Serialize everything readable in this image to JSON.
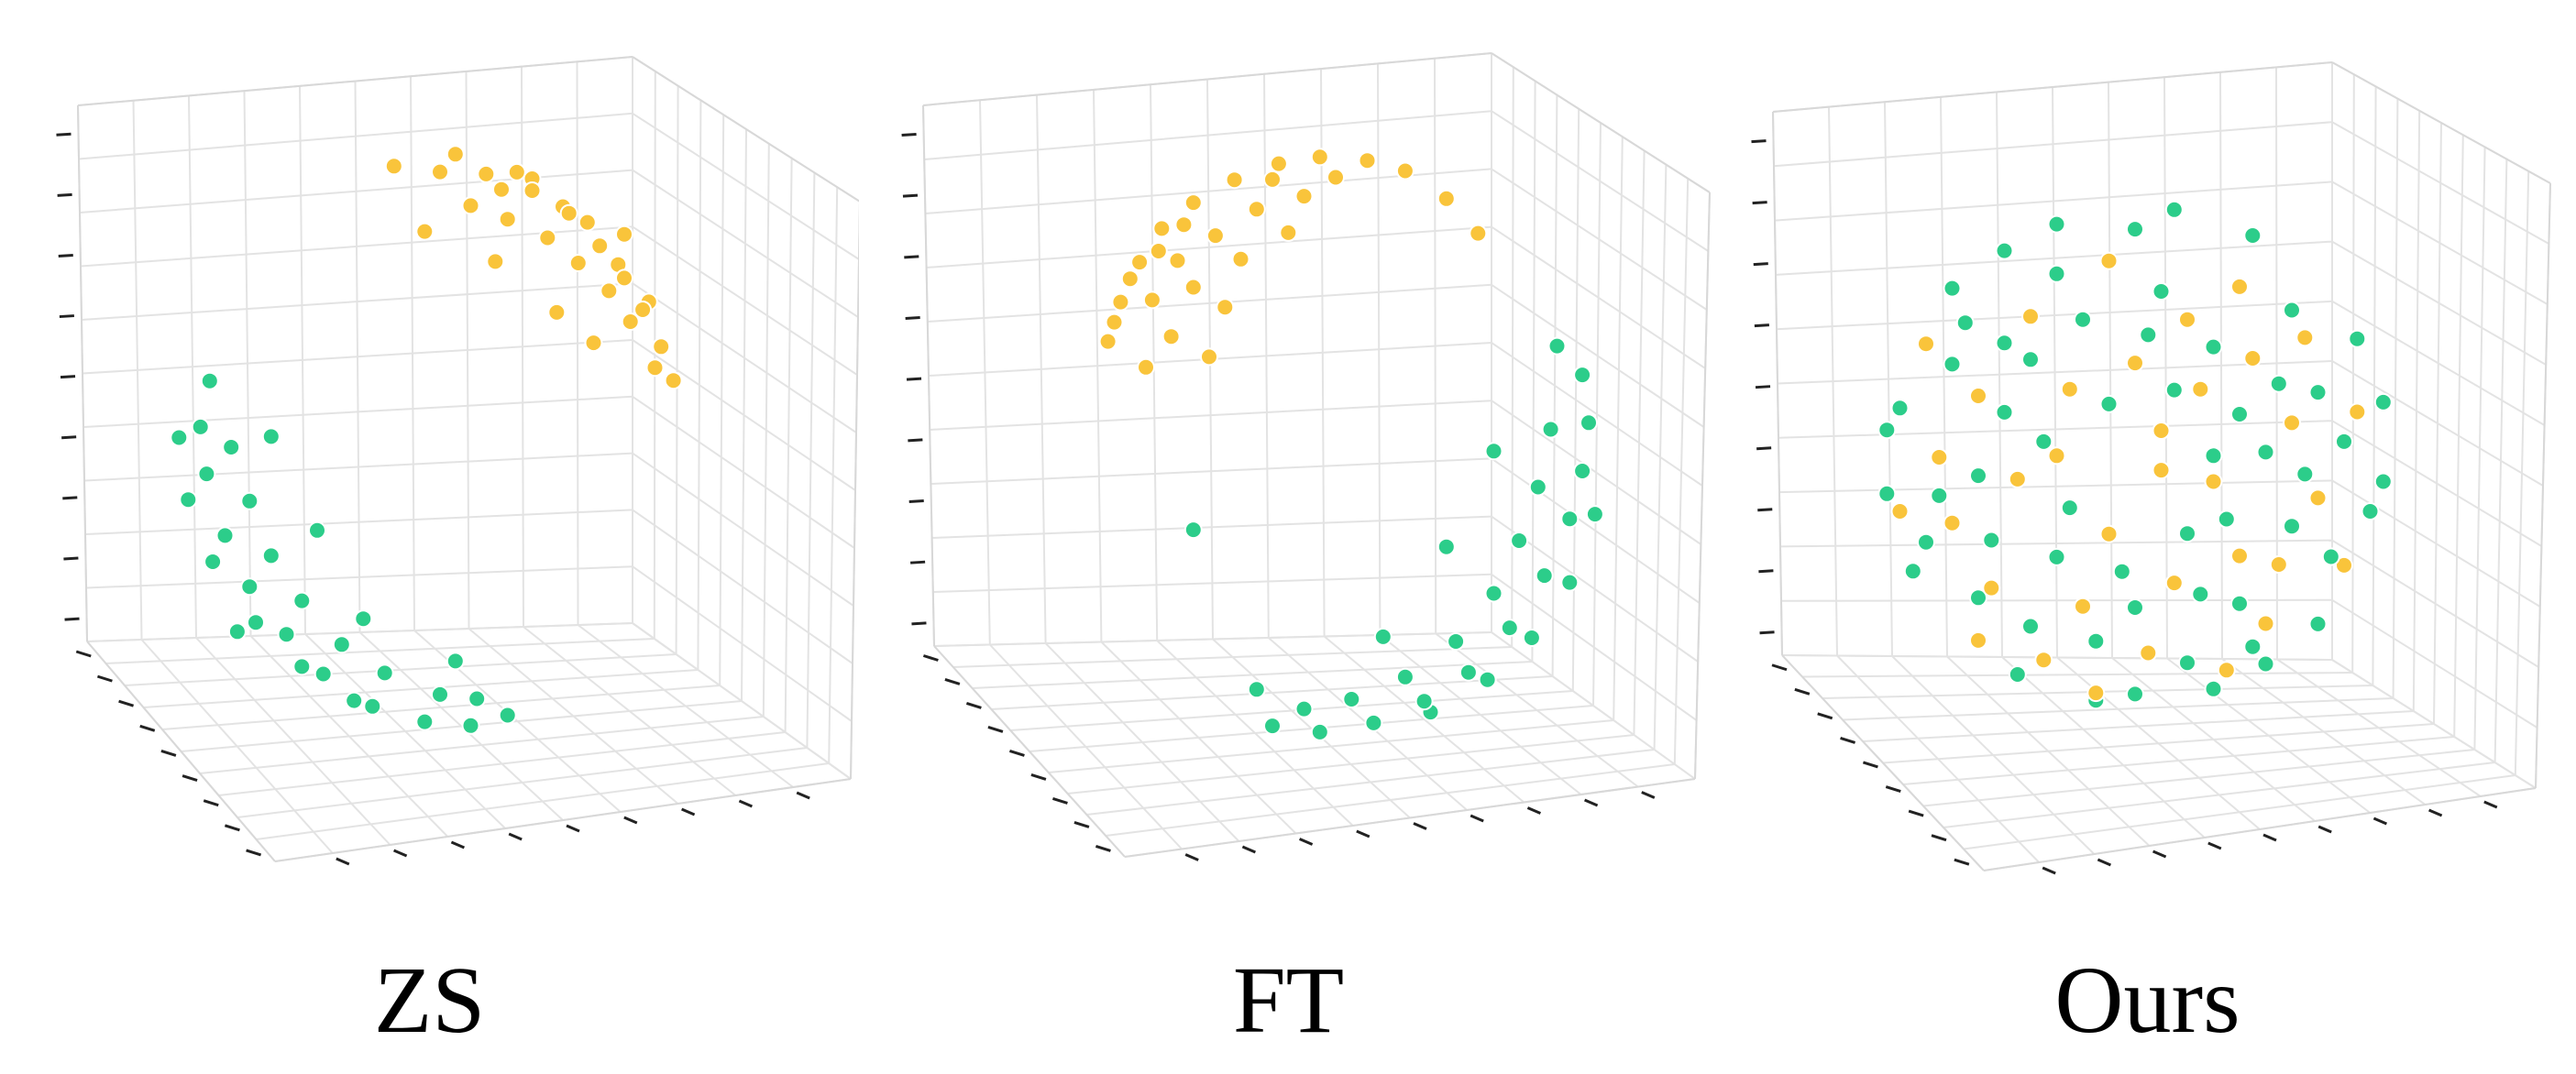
{
  "colors": {
    "class_a": "#f9c43b",
    "class_b": "#2ccd8a",
    "grid": "#e3e3e3",
    "tick": "#222222"
  },
  "chart_data": [
    {
      "type": "scatter",
      "title": "ZS",
      "projection": "3d",
      "grid": true,
      "series": [
        {
          "color": "#f9c43b",
          "points": [
            [
              -0.15,
              0.92,
              0.36
            ],
            [
              0.0,
              0.91,
              0.42
            ],
            [
              0.15,
              0.9,
              0.4
            ],
            [
              0.3,
              0.85,
              0.43
            ],
            [
              0.42,
              0.78,
              0.46
            ],
            [
              0.52,
              0.68,
              0.51
            ],
            [
              0.6,
              0.58,
              0.55
            ],
            [
              0.66,
              0.48,
              0.58
            ],
            [
              0.72,
              0.36,
              0.59
            ],
            [
              0.76,
              0.25,
              0.6
            ],
            [
              0.1,
              0.82,
              0.56
            ],
            [
              0.22,
              0.78,
              0.59
            ],
            [
              0.35,
              0.72,
              0.6
            ],
            [
              0.45,
              0.64,
              0.62
            ],
            [
              0.55,
              0.55,
              0.63
            ],
            [
              0.62,
              0.45,
              0.64
            ],
            [
              0.05,
              0.95,
              0.3
            ],
            [
              0.25,
              0.9,
              0.36
            ],
            [
              -0.05,
              0.75,
              0.66
            ],
            [
              0.18,
              0.66,
              0.72
            ],
            [
              0.38,
              0.5,
              0.77
            ],
            [
              0.5,
              0.4,
              0.77
            ],
            [
              0.3,
              0.88,
              0.37
            ],
            [
              0.48,
              0.75,
              0.46
            ],
            [
              0.58,
              0.62,
              0.52
            ],
            [
              0.68,
              0.5,
              0.54
            ],
            [
              0.7,
              0.3,
              0.65
            ],
            [
              0.4,
              0.8,
              0.45
            ],
            [
              0.2,
              0.86,
              0.47
            ],
            [
              0.6,
              0.7,
              0.39
            ]
          ]
        },
        {
          "color": "#2ccd8a",
          "points": [
            [
              -0.75,
              0.25,
              0.61
            ],
            [
              -0.78,
              0.1,
              0.62
            ],
            [
              -0.76,
              -0.05,
              0.65
            ],
            [
              -0.7,
              -0.25,
              0.67
            ],
            [
              -0.62,
              -0.42,
              0.66
            ],
            [
              -0.5,
              -0.58,
              0.64
            ],
            [
              -0.38,
              -0.72,
              0.58
            ],
            [
              -0.22,
              -0.84,
              0.49
            ],
            [
              -0.05,
              -0.9,
              0.43
            ],
            [
              0.1,
              -0.92,
              0.38
            ],
            [
              0.22,
              -0.88,
              0.42
            ],
            [
              -0.68,
              0.05,
              0.73
            ],
            [
              -0.62,
              -0.12,
              0.78
            ],
            [
              -0.55,
              -0.3,
              0.78
            ],
            [
              -0.45,
              -0.45,
              0.77
            ],
            [
              -0.32,
              -0.6,
              0.73
            ],
            [
              -0.18,
              -0.7,
              0.69
            ],
            [
              0.0,
              -0.78,
              0.63
            ],
            [
              0.12,
              -0.8,
              0.59
            ],
            [
              -0.82,
              -0.15,
              0.55
            ],
            [
              -0.74,
              -0.35,
              0.58
            ],
            [
              -0.6,
              -0.55,
              0.58
            ],
            [
              -0.45,
              -0.7,
              0.55
            ],
            [
              -0.28,
              -0.82,
              0.5
            ],
            [
              -0.55,
              0.1,
              0.83
            ],
            [
              -0.4,
              -0.2,
              0.89
            ],
            [
              -0.25,
              -0.5,
              0.83
            ],
            [
              0.05,
              -0.65,
              0.76
            ],
            [
              -0.66,
              -0.6,
              0.45
            ],
            [
              -0.85,
              0.05,
              0.52
            ]
          ]
        }
      ]
    },
    {
      "type": "scatter",
      "title": "FT",
      "projection": "3d",
      "grid": true,
      "series": [
        {
          "color": "#f9c43b",
          "points": [
            [
              -0.55,
              0.7,
              0.45
            ],
            [
              -0.45,
              0.78,
              0.43
            ],
            [
              -0.32,
              0.85,
              0.41
            ],
            [
              -0.18,
              0.9,
              0.4
            ],
            [
              -0.05,
              0.92,
              0.39
            ],
            [
              0.1,
              0.91,
              0.4
            ],
            [
              0.22,
              0.88,
              0.42
            ],
            [
              -0.62,
              0.6,
              0.5
            ],
            [
              -0.68,
              0.48,
              0.55
            ],
            [
              -0.72,
              0.36,
              0.59
            ],
            [
              -0.5,
              0.62,
              0.6
            ],
            [
              -0.38,
              0.7,
              0.6
            ],
            [
              -0.25,
              0.78,
              0.57
            ],
            [
              -0.1,
              0.82,
              0.56
            ],
            [
              -0.58,
              0.5,
              0.64
            ],
            [
              -0.45,
              0.55,
              0.7
            ],
            [
              -0.3,
              0.64,
              0.7
            ],
            [
              -0.15,
              0.72,
              0.67
            ],
            [
              -0.52,
              0.4,
              0.75
            ],
            [
              -0.35,
              0.5,
              0.79
            ],
            [
              0.35,
              0.8,
              0.48
            ],
            [
              0.45,
              0.7,
              0.55
            ],
            [
              -0.6,
              0.3,
              0.74
            ],
            [
              -0.4,
              0.35,
              0.85
            ],
            [
              -0.65,
              0.55,
              0.52
            ],
            [
              -0.2,
              0.86,
              0.47
            ],
            [
              0.0,
              0.87,
              0.49
            ],
            [
              -0.48,
              0.72,
              0.5
            ],
            [
              -0.56,
              0.64,
              0.53
            ],
            [
              -0.7,
              0.42,
              0.58
            ]
          ]
        },
        {
          "color": "#2ccd8a",
          "points": [
            [
              0.78,
              0.25,
              0.57
            ],
            [
              0.8,
              0.1,
              0.59
            ],
            [
              0.78,
              -0.05,
              0.62
            ],
            [
              0.74,
              -0.2,
              0.64
            ],
            [
              0.66,
              -0.38,
              0.65
            ],
            [
              0.55,
              -0.55,
              0.63
            ],
            [
              0.42,
              -0.7,
              0.58
            ],
            [
              0.28,
              -0.8,
              0.53
            ],
            [
              0.12,
              -0.88,
              0.46
            ],
            [
              -0.05,
              -0.92,
              0.39
            ],
            [
              -0.2,
              -0.9,
              0.39
            ],
            [
              0.68,
              0.1,
              0.73
            ],
            [
              0.64,
              -0.08,
              0.76
            ],
            [
              0.58,
              -0.25,
              0.77
            ],
            [
              0.5,
              -0.42,
              0.76
            ],
            [
              0.38,
              -0.58,
              0.72
            ],
            [
              0.22,
              -0.7,
              0.68
            ],
            [
              0.05,
              -0.78,
              0.62
            ],
            [
              -0.1,
              -0.82,
              0.56
            ],
            [
              0.82,
              -0.2,
              0.54
            ],
            [
              0.74,
              -0.42,
              0.53
            ],
            [
              0.62,
              -0.6,
              0.51
            ],
            [
              0.48,
              -0.74,
              0.47
            ],
            [
              0.3,
              -0.85,
              0.43
            ],
            [
              0.5,
              0.05,
              0.86
            ],
            [
              0.35,
              -0.25,
              0.9
            ],
            [
              0.15,
              -0.55,
              0.82
            ],
            [
              -0.25,
              -0.75,
              0.61
            ],
            [
              0.7,
              0.35,
              0.62
            ],
            [
              -0.45,
              -0.2,
              0.87
            ]
          ]
        }
      ]
    },
    {
      "type": "scatter",
      "title": "Ours",
      "projection": "3d",
      "grid": true,
      "series": [
        {
          "color": "#f9c43b",
          "points": [
            [
              -0.6,
              0.3,
              0.74
            ],
            [
              -0.3,
              0.1,
              0.95
            ],
            [
              0.1,
              0.2,
              0.97
            ],
            [
              0.4,
              -0.3,
              0.87
            ],
            [
              -0.2,
              -0.5,
              0.84
            ],
            [
              0.6,
              0.2,
              0.77
            ],
            [
              -0.7,
              -0.2,
              0.69
            ],
            [
              0.2,
              0.6,
              0.77
            ],
            [
              -0.4,
              0.6,
              0.69
            ],
            [
              0.5,
              -0.6,
              0.62
            ],
            [
              -0.1,
              -0.2,
              0.97
            ],
            [
              0.3,
              0.0,
              0.95
            ],
            [
              -0.55,
              -0.45,
              0.7
            ],
            [
              0.7,
              -0.1,
              0.71
            ],
            [
              0.05,
              -0.7,
              0.71
            ],
            [
              -0.25,
              0.35,
              0.9
            ],
            [
              0.45,
              0.45,
              0.77
            ],
            [
              -0.75,
              0.05,
              0.66
            ],
            [
              0.15,
              -0.4,
              0.9
            ],
            [
              0.55,
              -0.35,
              0.76
            ],
            [
              -0.35,
              -0.75,
              0.56
            ],
            [
              0.25,
              0.35,
              0.9
            ],
            [
              -0.45,
              0.0,
              0.89
            ],
            [
              0.65,
              0.5,
              0.57
            ],
            [
              -0.1,
              0.8,
              0.59
            ],
            [
              0.35,
              -0.8,
              0.49
            ],
            [
              -0.8,
              0.45,
              0.4
            ],
            [
              0.8,
              -0.4,
              0.45
            ],
            [
              0.0,
              0.45,
              0.89
            ],
            [
              -0.6,
              -0.7,
              0.39
            ],
            [
              0.4,
              0.7,
              0.59
            ],
            [
              -0.15,
              -0.9,
              0.41
            ],
            [
              0.85,
              0.2,
              0.49
            ],
            [
              -0.9,
              -0.2,
              0.39
            ],
            [
              0.1,
              0.05,
              0.99
            ]
          ]
        },
        {
          "color": "#2ccd8a",
          "points": [
            [
              -0.5,
              0.5,
              0.71
            ],
            [
              0.2,
              -0.2,
              0.96
            ],
            [
              -0.1,
              0.3,
              0.95
            ],
            [
              0.5,
              0.1,
              0.86
            ],
            [
              -0.3,
              -0.3,
              0.9
            ],
            [
              0.3,
              0.5,
              0.81
            ],
            [
              -0.6,
              0.0,
              0.8
            ],
            [
              0.0,
              -0.5,
              0.87
            ],
            [
              0.6,
              -0.2,
              0.77
            ],
            [
              -0.2,
              0.6,
              0.77
            ],
            [
              0.4,
              -0.5,
              0.77
            ],
            [
              -0.7,
              0.4,
              0.59
            ],
            [
              0.7,
              0.3,
              0.65
            ],
            [
              -0.4,
              -0.6,
              0.69
            ],
            [
              0.1,
              0.7,
              0.71
            ],
            [
              -0.8,
              -0.3,
              0.52
            ],
            [
              0.8,
              0.1,
              0.59
            ],
            [
              0.2,
              -0.75,
              0.63
            ],
            [
              -0.3,
              0.75,
              0.59
            ],
            [
              0.6,
              0.6,
              0.53
            ],
            [
              -0.6,
              -0.5,
              0.62
            ],
            [
              0.9,
              -0.2,
              0.39
            ],
            [
              -0.9,
              0.2,
              0.39
            ],
            [
              0.0,
              0.9,
              0.44
            ],
            [
              0.0,
              -0.9,
              0.44
            ],
            [
              0.45,
              0.85,
              0.27
            ],
            [
              -0.45,
              -0.85,
              0.27
            ],
            [
              0.7,
              -0.65,
              0.3
            ],
            [
              -0.7,
              0.65,
              0.3
            ],
            [
              0.95,
              0.2,
              0.24
            ],
            [
              -0.95,
              -0.15,
              0.27
            ],
            [
              0.3,
              -0.9,
              0.31
            ],
            [
              -0.3,
              0.9,
              0.31
            ],
            [
              0.55,
              0.35,
              0.76
            ],
            [
              -0.35,
              0.15,
              0.92
            ],
            [
              0.15,
              0.35,
              0.92
            ],
            [
              -0.15,
              -0.65,
              0.74
            ],
            [
              0.35,
              -0.15,
              0.92
            ],
            [
              -0.5,
              0.25,
              0.83
            ],
            [
              0.25,
              -0.45,
              0.86
            ],
            [
              0.75,
              -0.35,
              0.56
            ],
            [
              -0.75,
              -0.1,
              0.65
            ],
            [
              0.05,
              0.55,
              0.83
            ],
            [
              -0.55,
              -0.25,
              0.8
            ],
            [
              0.65,
              0.0,
              0.76
            ],
            [
              -0.05,
              -0.35,
              0.94
            ],
            [
              0.4,
              0.25,
              0.88
            ],
            [
              -0.25,
              -0.1,
              0.96
            ],
            [
              0.85,
              0.45,
              0.27
            ],
            [
              -0.85,
              -0.45,
              0.27
            ],
            [
              0.5,
              -0.8,
              0.33
            ],
            [
              -0.5,
              0.8,
              0.33
            ],
            [
              0.15,
              0.95,
              0.27
            ],
            [
              -0.15,
              -0.95,
              0.27
            ],
            [
              0.95,
              -0.1,
              0.29
            ],
            [
              -0.95,
              0.1,
              0.29
            ],
            [
              0.3,
              0.1,
              0.95
            ],
            [
              -0.4,
              0.45,
              0.8
            ],
            [
              0.45,
              -0.7,
              0.55
            ],
            [
              -0.65,
              0.55,
              0.52
            ]
          ]
        }
      ]
    }
  ]
}
